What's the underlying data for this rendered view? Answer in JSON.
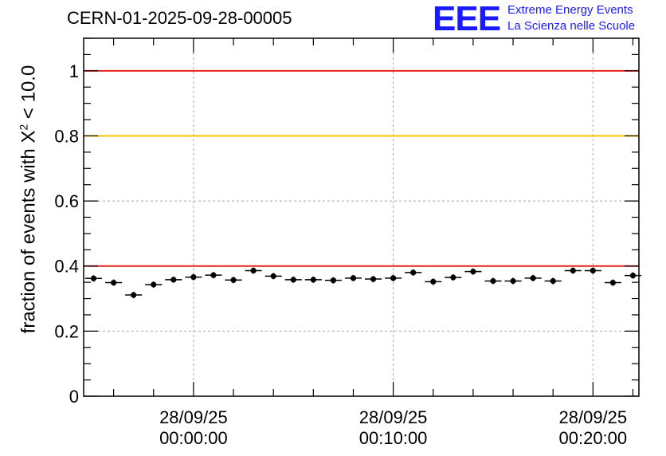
{
  "title": "CERN-01-2025-09-28-00005",
  "logo": {
    "text": "EEE",
    "line1": "Extreme Energy Events",
    "line2": "La Scienza nelle Scuole"
  },
  "chart_data": {
    "type": "scatter",
    "ylabel_prefix": "fraction of events with X",
    "ylabel_sup": "2",
    "ylabel_suffix": " < 10.0",
    "ylim": [
      0,
      1.1
    ],
    "y_ticks": [
      0,
      0.2,
      0.4,
      0.6,
      0.8,
      1
    ],
    "y_tick_labels": [
      "0",
      "0.2",
      "0.4",
      "0.6",
      "0.8",
      "1"
    ],
    "x_range_minutes": [
      -5.5,
      22.3
    ],
    "x_major_ticks": [
      {
        "minute": 0,
        "date": "28/09/25",
        "time": "00:00:00"
      },
      {
        "minute": 10,
        "date": "28/09/25",
        "time": "00:10:00"
      },
      {
        "minute": 20,
        "date": "28/09/25",
        "time": "00:20:00"
      }
    ],
    "grid": true,
    "reference_lines": [
      {
        "y": 1.0,
        "color": "#e8201c"
      },
      {
        "y": 0.8,
        "color": "#f5c000"
      },
      {
        "y": 0.4,
        "color": "#e8201c"
      }
    ],
    "bin_width_minutes": 1,
    "points": [
      {
        "x": -5.0,
        "y": 0.362
      },
      {
        "x": -4.0,
        "y": 0.349
      },
      {
        "x": -3.0,
        "y": 0.311
      },
      {
        "x": -2.0,
        "y": 0.343
      },
      {
        "x": -1.0,
        "y": 0.358
      },
      {
        "x": 0.0,
        "y": 0.366
      },
      {
        "x": 1.0,
        "y": 0.372
      },
      {
        "x": 2.0,
        "y": 0.357
      },
      {
        "x": 3.0,
        "y": 0.386
      },
      {
        "x": 4.0,
        "y": 0.369
      },
      {
        "x": 5.0,
        "y": 0.358
      },
      {
        "x": 6.0,
        "y": 0.358
      },
      {
        "x": 7.0,
        "y": 0.356
      },
      {
        "x": 8.0,
        "y": 0.363
      },
      {
        "x": 9.0,
        "y": 0.36
      },
      {
        "x": 10.0,
        "y": 0.363
      },
      {
        "x": 11.0,
        "y": 0.38
      },
      {
        "x": 12.0,
        "y": 0.352
      },
      {
        "x": 13.0,
        "y": 0.365
      },
      {
        "x": 14.0,
        "y": 0.383
      },
      {
        "x": 15.0,
        "y": 0.354
      },
      {
        "x": 16.0,
        "y": 0.354
      },
      {
        "x": 17.0,
        "y": 0.363
      },
      {
        "x": 18.0,
        "y": 0.354
      },
      {
        "x": 19.0,
        "y": 0.386
      },
      {
        "x": 20.0,
        "y": 0.386
      },
      {
        "x": 21.0,
        "y": 0.349
      },
      {
        "x": 22.0,
        "y": 0.371
      }
    ]
  }
}
